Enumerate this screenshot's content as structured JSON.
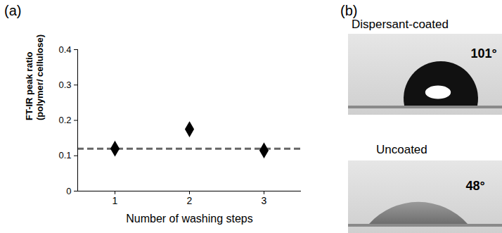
{
  "chart_data": {
    "type": "scatter",
    "panel_label": "(a)",
    "x": [
      1,
      2,
      3
    ],
    "values": [
      0.12,
      0.175,
      0.115
    ],
    "color": "#000000",
    "marker": "diamond",
    "x_label": "Number of washing steps",
    "y_label": [
      "FT-IR peak ratio",
      "(polymer/ cellulose)"
    ],
    "xlim": [
      0.5,
      3.5
    ],
    "xticks": [
      1,
      2,
      3
    ],
    "ylim": [
      0,
      0.4
    ],
    "yticks": [
      0,
      0.1,
      0.2,
      0.3,
      0.4
    ],
    "reference_line": {
      "y": 0.12,
      "line_style": "dashed",
      "color": "#666666"
    }
  },
  "images": {
    "panel_label": "(b)",
    "droplets": [
      {
        "label": "Dispersant-coated",
        "contact_angle": 101,
        "angle_label": "101°"
      },
      {
        "label": "Uncoated",
        "contact_angle": 48,
        "angle_label": "48°"
      }
    ]
  }
}
